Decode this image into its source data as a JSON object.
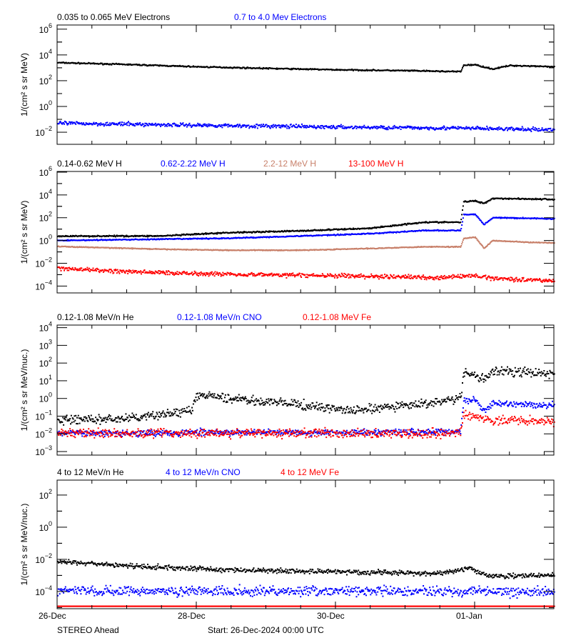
{
  "colors": {
    "black": "#000000",
    "blue": "#0000ff",
    "brown": "#c8806a",
    "red": "#ff0000",
    "axis": "#000000"
  },
  "footer": {
    "left": "STEREO Ahead",
    "center": "Start: 26-Dec-2024 00:00 UTC"
  },
  "chart_data": [
    {
      "type": "scatter",
      "ylabel": "1/(cm² s sr MeV)",
      "yscale": "log",
      "ylim": [
        0.00115,
        2100000
      ],
      "y_tick_exponents": [
        6,
        4,
        2,
        0,
        -2
      ],
      "xlim": [
        "2024-12-26 00:00",
        "2025-01-02 03:20"
      ],
      "x_tick_labels": [
        {
          "t": "2024-12-26 00:00",
          "label": "26-Dec"
        },
        {
          "t": "2024-12-28 00:00",
          "label": "28-Dec"
        },
        {
          "t": "2024-12-30 00:00",
          "label": "30-Dec"
        },
        {
          "t": "2025-01-01 00:00",
          "label": "01-Jan"
        }
      ],
      "series": [
        {
          "name": "0.035 to 0.065 MeV Electrons",
          "color": "black",
          "x": [
            "2024-12-26 00:00",
            "2024-12-27 00:00",
            "2024-12-28 00:00",
            "2024-12-29 00:00",
            "2024-12-30 00:00",
            "2024-12-31 00:00",
            "2024-12-31 19:00",
            "2024-12-31 20:00",
            "2025-01-01 00:00",
            "2025-01-01 06:00",
            "2025-01-01 12:00",
            "2025-01-02 00:00",
            "2025-01-02 03:20"
          ],
          "y": [
            2500,
            1800,
            1200,
            900,
            700,
            600,
            500,
            1600,
            1700,
            800,
            1500,
            1300,
            1100
          ]
        },
        {
          "name": "0.7 to 4.0 Mev Electrons",
          "color": "blue",
          "x": [
            "2024-12-26 00:00",
            "2024-12-28 00:00",
            "2024-12-30 00:00",
            "2025-01-01 00:00",
            "2025-01-02 03:20"
          ],
          "y": [
            0.05,
            0.035,
            0.025,
            0.02,
            0.015
          ]
        }
      ]
    },
    {
      "type": "scatter",
      "ylabel": "1/(cm² s sr MeV)",
      "yscale": "log",
      "ylim": [
        2.5e-05,
        1150000
      ],
      "y_tick_exponents": [
        6,
        4,
        2,
        0,
        -2,
        -4
      ],
      "xlim": [
        "2024-12-26 00:00",
        "2025-01-02 03:20"
      ],
      "x_tick_labels": [],
      "series": [
        {
          "name": "0.14-0.62 MeV H",
          "color": "black",
          "x": [
            "2024-12-26 00:00",
            "2024-12-27 12:00",
            "2024-12-28 12:00",
            "2024-12-29 12:00",
            "2024-12-30 12:00",
            "2024-12-31 06:00",
            "2024-12-31 19:00",
            "2024-12-31 20:00",
            "2025-01-01 00:00",
            "2025-01-01 03:00",
            "2025-01-01 06:00",
            "2025-01-01 18:00",
            "2025-01-02 03:20"
          ],
          "y": [
            2.4,
            2.5,
            5,
            7,
            12,
            40,
            40,
            2500,
            3000,
            1800,
            5000,
            4500,
            4000
          ]
        },
        {
          "name": "0.62-2.22 MeV H",
          "color": "blue",
          "x": [
            "2024-12-26 00:00",
            "2024-12-27 12:00",
            "2024-12-28 12:00",
            "2024-12-29 12:00",
            "2024-12-30 12:00",
            "2024-12-31 06:00",
            "2024-12-31 19:00",
            "2024-12-31 20:00",
            "2025-01-01 00:00",
            "2025-01-01 03:00",
            "2025-01-01 06:00",
            "2025-01-01 18:00",
            "2025-01-02 03:20"
          ],
          "y": [
            1.0,
            1.3,
            1.6,
            2.5,
            4,
            7.5,
            7.5,
            180,
            200,
            25,
            100,
            90,
            80
          ]
        },
        {
          "name": "2.2-12 MeV H",
          "color": "brown",
          "x": [
            "2024-12-26 00:00",
            "2024-12-27 12:00",
            "2024-12-28 12:00",
            "2024-12-29 12:00",
            "2024-12-30 12:00",
            "2024-12-31 06:00",
            "2024-12-31 19:00",
            "2024-12-31 20:00",
            "2025-01-01 00:00",
            "2025-01-01 03:00",
            "2025-01-01 06:00",
            "2025-01-01 18:00",
            "2025-01-02 03:20"
          ],
          "y": [
            0.3,
            0.17,
            0.14,
            0.14,
            0.2,
            0.28,
            0.28,
            1.5,
            2,
            0.2,
            1,
            0.7,
            0.6
          ]
        },
        {
          "name": "13-100 MeV H",
          "color": "red",
          "x": [
            "2024-12-26 00:00",
            "2024-12-27 00:00",
            "2024-12-28 12:00",
            "2024-12-30 00:00",
            "2024-12-31 12:00",
            "2025-01-01 00:00",
            "2025-01-01 06:00",
            "2025-01-02 03:20"
          ],
          "y": [
            0.0036,
            0.0018,
            0.0011,
            0.0008,
            0.00055,
            0.0008,
            0.0005,
            0.00028
          ]
        }
      ]
    },
    {
      "type": "scatter",
      "ylabel": "1/(cm² s sr MeV/nuc.)",
      "yscale": "log",
      "ylim": [
        0.00063,
        14000
      ],
      "y_tick_exponents": [
        4,
        3,
        2,
        1,
        0,
        -1,
        -2,
        -3
      ],
      "xlim": [
        "2024-12-26 00:00",
        "2025-01-02 03:20"
      ],
      "x_tick_labels": [],
      "series": [
        {
          "name": "0.12-1.08 MeV/n He",
          "color": "black",
          "x": [
            "2024-12-26 00:00",
            "2024-12-27 00:00",
            "2024-12-27 22:00",
            "2024-12-28 00:00",
            "2024-12-29 08:00",
            "2024-12-30 06:00",
            "2024-12-31 06:00",
            "2024-12-31 19:00",
            "2024-12-31 20:00",
            "2025-01-01 00:00",
            "2025-01-01 03:00",
            "2025-01-01 06:00",
            "2025-01-01 18:00",
            "2025-01-02 03:20"
          ],
          "y": [
            0.06,
            0.07,
            0.2,
            1.5,
            0.5,
            0.2,
            0.5,
            1.0,
            25,
            20,
            12,
            35,
            30,
            25
          ]
        },
        {
          "name": "0.12-1.08 MeV/n CNO",
          "color": "blue",
          "x": [
            "2024-12-26 00:00",
            "2024-12-31 19:00",
            "2024-12-31 20:00",
            "2025-01-01 00:00",
            "2025-01-01 03:00",
            "2025-01-01 06:00",
            "2025-01-02 03:20"
          ],
          "y": [
            0.011,
            0.013,
            0.8,
            0.9,
            0.2,
            0.5,
            0.4
          ]
        },
        {
          "name": "0.12-1.08 MeV Fe",
          "color": "red",
          "x": [
            "2024-12-26 00:00",
            "2024-12-31 19:00",
            "2024-12-31 20:00",
            "2025-01-01 00:00",
            "2025-01-01 06:00",
            "2025-01-02 03:20"
          ],
          "y": [
            0.011,
            0.011,
            0.13,
            0.1,
            0.06,
            0.05
          ]
        }
      ]
    },
    {
      "type": "scatter",
      "ylabel": "1/(cm² s sr MeV/nuc.)",
      "yscale": "log",
      "ylim": [
        8.5e-06,
        850
      ],
      "y_tick_exponents": [
        2,
        0,
        -2,
        -4
      ],
      "xlim": [
        "2024-12-26 00:00",
        "2025-01-02 03:20"
      ],
      "x_tick_labels": [
        {
          "t": "2024-12-26 00:00",
          "label": "26-Dec"
        },
        {
          "t": "2024-12-28 00:00",
          "label": "28-Dec"
        },
        {
          "t": "2024-12-30 00:00",
          "label": "30-Dec"
        },
        {
          "t": "2025-01-01 00:00",
          "label": "01-Jan"
        }
      ],
      "series": [
        {
          "name": "4 to 12 MeV/n He",
          "color": "black",
          "x": [
            "2024-12-26 00:00",
            "2024-12-27 00:00",
            "2024-12-28 12:00",
            "2024-12-30 00:00",
            "2024-12-31 12:00",
            "2024-12-31 22:00",
            "2025-01-01 04:00",
            "2025-01-02 03:20"
          ],
          "y": [
            0.0075,
            0.0038,
            0.0022,
            0.0017,
            0.0013,
            0.003,
            0.0009,
            0.001
          ]
        },
        {
          "name": "4 to 12 MeV/n CNO",
          "color": "blue",
          "x": [
            "2024-12-26 00:00",
            "2025-01-02 03:20"
          ],
          "y": [
            0.00011,
            0.0001
          ]
        },
        {
          "name": "4 to 12 MeV Fe",
          "color": "red",
          "x": [
            "2024-12-26 00:00",
            "2025-01-02 03:20"
          ],
          "y": [
            1.2e-05,
            1.2e-05
          ]
        }
      ]
    }
  ]
}
